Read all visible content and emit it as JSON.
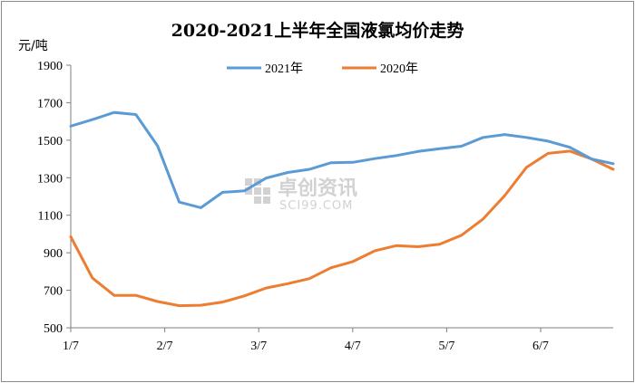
{
  "chart_data": {
    "type": "line",
    "title": "2020-2021上半年全国液氯均价走势",
    "ylabel": "元/吨",
    "ylim": [
      500,
      1900
    ],
    "yticks": [
      500,
      700,
      900,
      1100,
      1300,
      1500,
      1700,
      1900
    ],
    "xticks": [
      "1/7",
      "2/7",
      "3/7",
      "4/7",
      "5/7",
      "6/7"
    ],
    "legend_position": "top",
    "grid": false,
    "series": [
      {
        "name": "2021年",
        "color": "#5b9bd5",
        "values": [
          1575,
          1610,
          1648,
          1637,
          1470,
          1170,
          1140,
          1222,
          1230,
          1298,
          1328,
          1345,
          1380,
          1382,
          1402,
          1418,
          1440,
          1455,
          1468,
          1515,
          1530,
          1515,
          1495,
          1462,
          1400,
          1375
        ]
      },
      {
        "name": "2020年",
        "color": "#ed7d31",
        "values": [
          985,
          765,
          673,
          673,
          640,
          618,
          620,
          637,
          670,
          712,
          735,
          762,
          820,
          853,
          910,
          938,
          932,
          945,
          993,
          1080,
          1205,
          1355,
          1430,
          1442,
          1400,
          1345
        ]
      }
    ]
  },
  "watermark": {
    "text_cn": "卓创资讯",
    "text_en": "SCI99.COM"
  }
}
